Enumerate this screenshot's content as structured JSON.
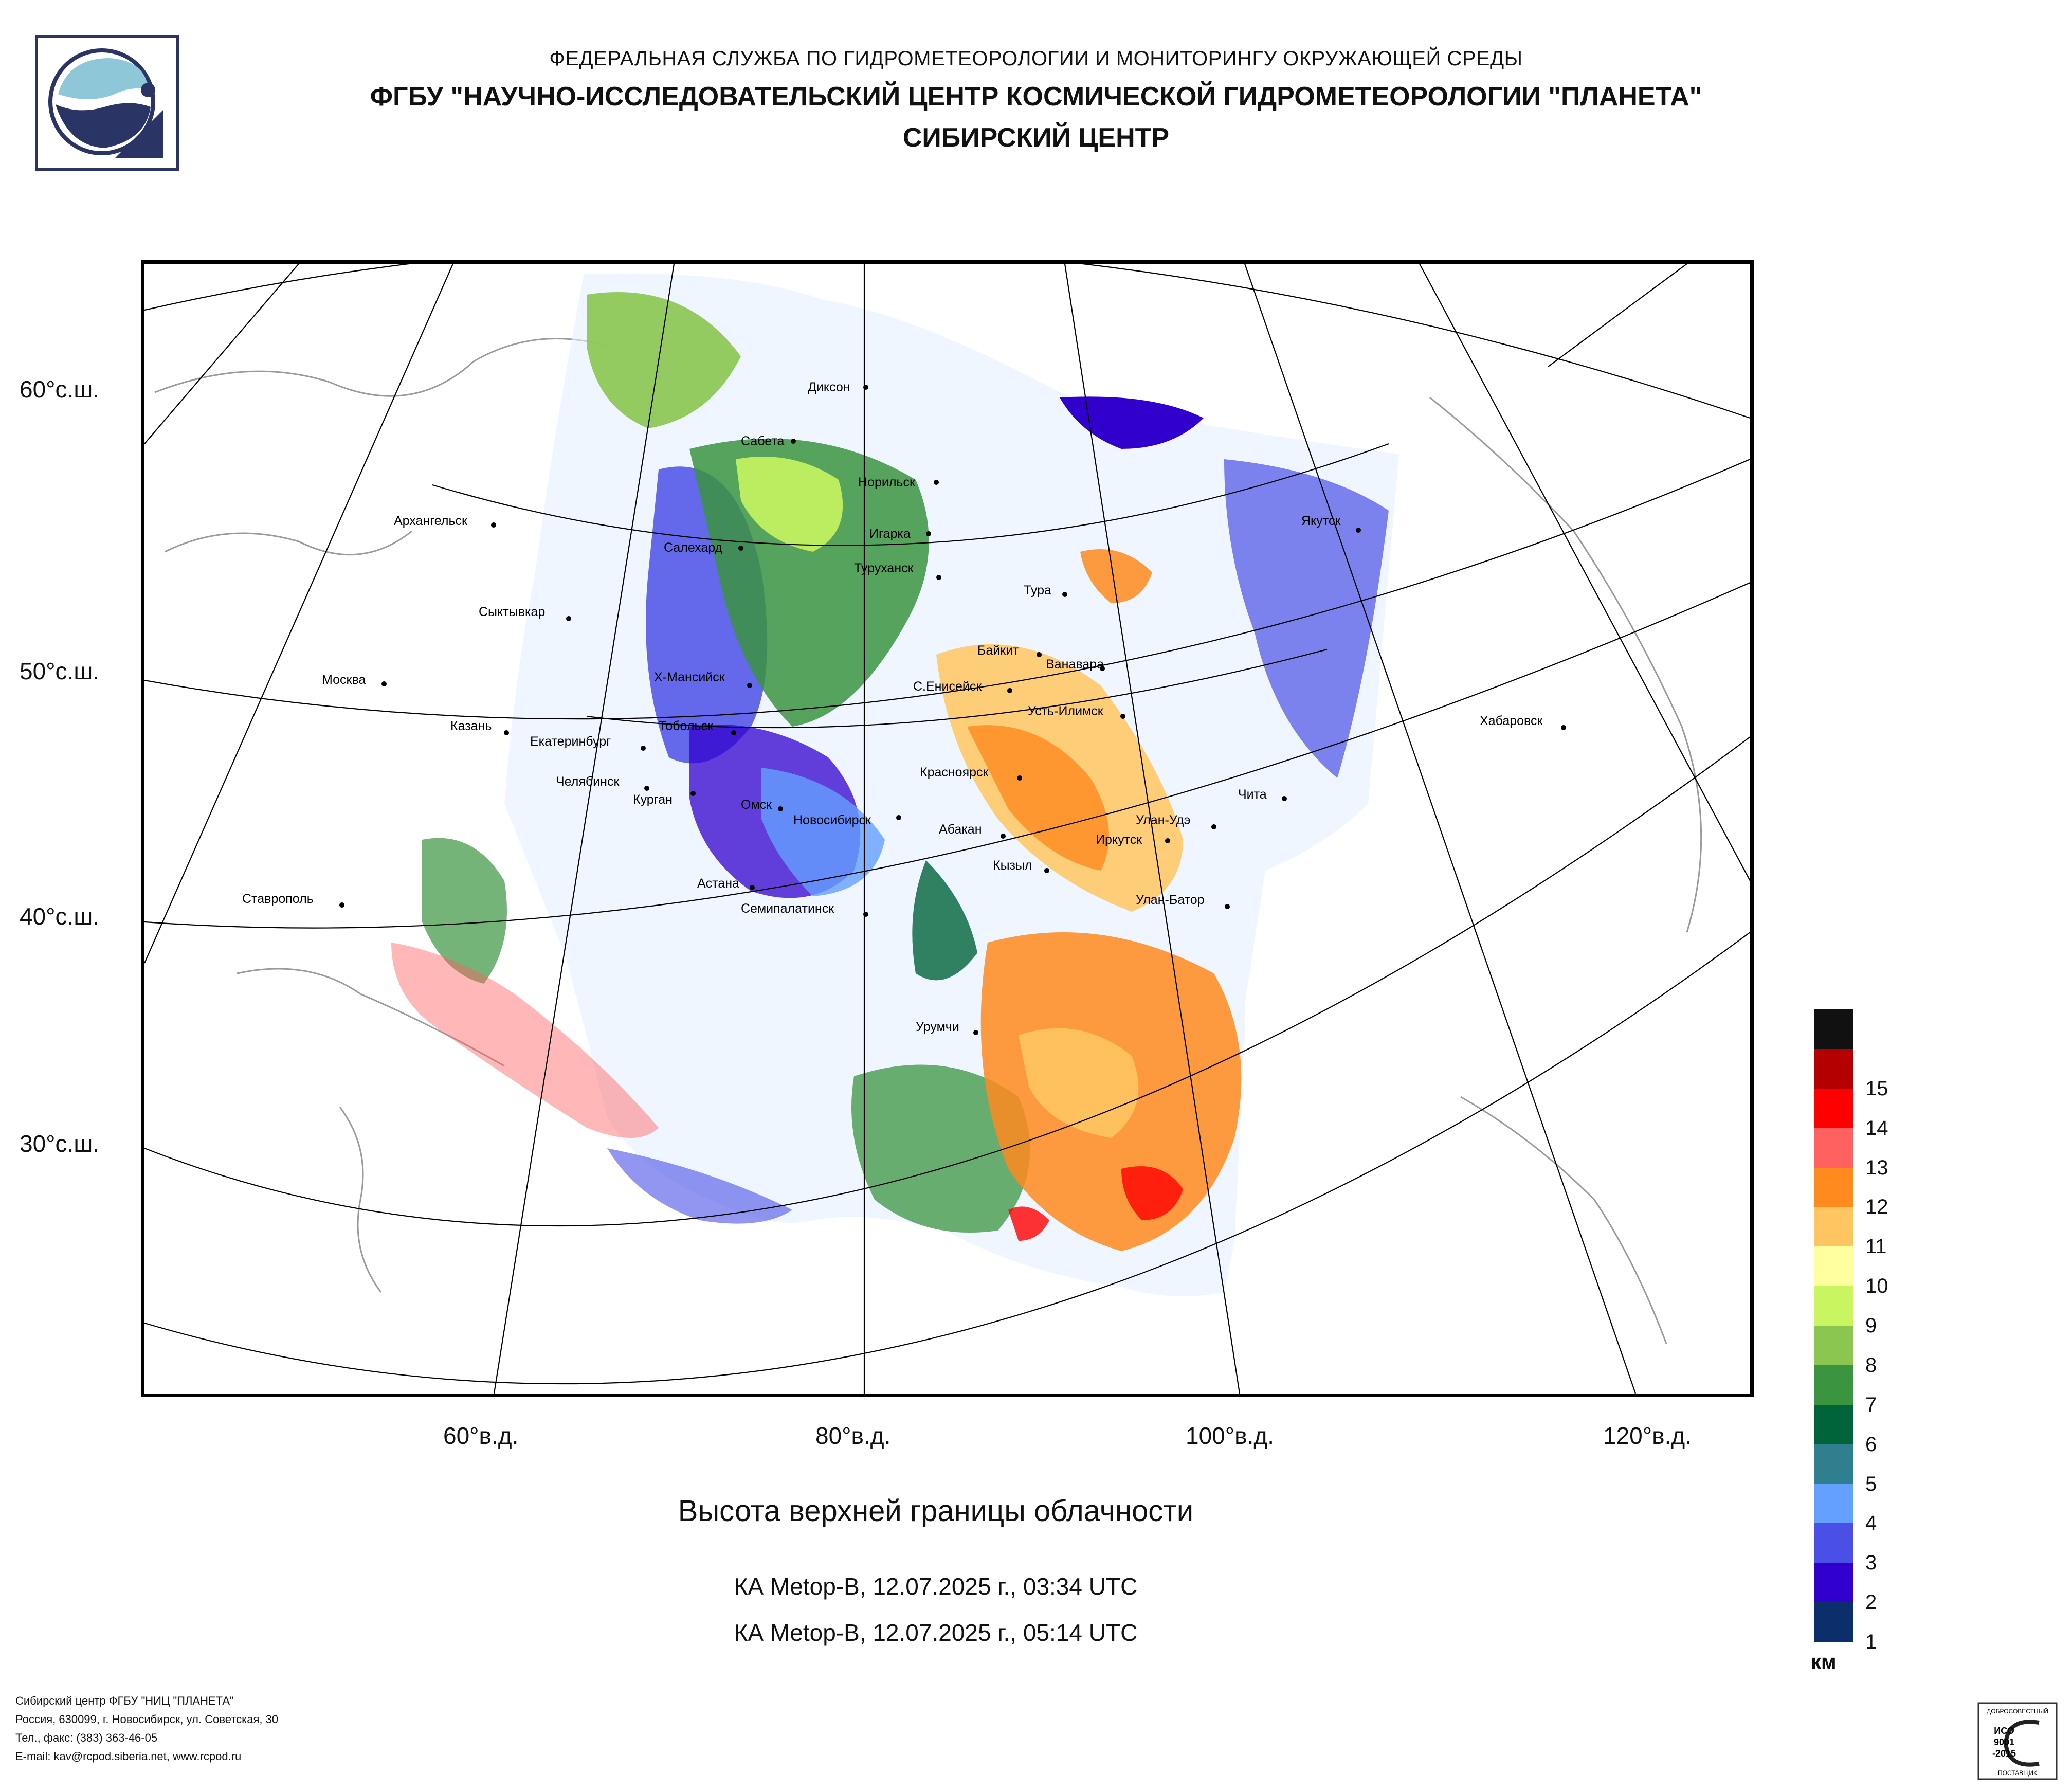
{
  "header": {
    "line1": "ФЕДЕРАЛЬНАЯ СЛУЖБА ПО ГИДРОМЕТЕОРОЛОГИИ И МОНИТОРИНГУ ОКРУЖАЮЩЕЙ СРЕДЫ",
    "line2": "ФГБУ \"НАУЧНО-ИССЛЕДОВАТЕЛЬСКИЙ ЦЕНТР КОСМИЧЕСКОЙ ГИДРОМЕТЕОРОЛОГИИ \"ПЛАНЕТА\"",
    "line3": "СИБИРСКИЙ ЦЕНТР"
  },
  "map": {
    "title": "Высота верхней границы облачности",
    "passes": [
      "КА Metop-B, 12.07.2025 г., 03:34 UTC",
      "КА Metop-B, 12.07.2025 г., 05:14 UTC"
    ],
    "lat_labels": [
      "60°с.ш.",
      "50°с.ш.",
      "40°с.ш.",
      "30°с.ш."
    ],
    "lon_labels": [
      "60°в.д.",
      "80°в.д.",
      "100°в.д.",
      "120°в.д."
    ],
    "cities": [
      {
        "name": "Диксон"
      },
      {
        "name": "Сабета"
      },
      {
        "name": "Норильск"
      },
      {
        "name": "Архангельск"
      },
      {
        "name": "Салехард"
      },
      {
        "name": "Игарка"
      },
      {
        "name": "Якутск"
      },
      {
        "name": "Туруханск"
      },
      {
        "name": "Тура"
      },
      {
        "name": "Сыктывкар"
      },
      {
        "name": "Байкит"
      },
      {
        "name": "Ванавара"
      },
      {
        "name": "Москва"
      },
      {
        "name": "Х-Мансийск"
      },
      {
        "name": "С.Енисейск"
      },
      {
        "name": "Усть-Илимск"
      },
      {
        "name": "Казань"
      },
      {
        "name": "Тобольск"
      },
      {
        "name": "Хабаровск"
      },
      {
        "name": "Екатеринбург"
      },
      {
        "name": "Красноярск"
      },
      {
        "name": "Челябинск"
      },
      {
        "name": "Курган"
      },
      {
        "name": "Чита"
      },
      {
        "name": "Омск"
      },
      {
        "name": "Новосибирск"
      },
      {
        "name": "Улан-Удэ"
      },
      {
        "name": "Абакан"
      },
      {
        "name": "Иркутск"
      },
      {
        "name": "Кызыл"
      },
      {
        "name": "Астана"
      },
      {
        "name": "Ставрополь"
      },
      {
        "name": "Семипалатинск"
      },
      {
        "name": "Улан-Батор"
      },
      {
        "name": "Урумчи"
      }
    ]
  },
  "legend": {
    "unit": "км",
    "levels": [
      {
        "label": "",
        "color": "#111111"
      },
      {
        "label": "15",
        "color": "#b50000"
      },
      {
        "label": "14",
        "color": "#ff0000"
      },
      {
        "label": "13",
        "color": "#ff6060"
      },
      {
        "label": "12",
        "color": "#ff8a1e"
      },
      {
        "label": "11",
        "color": "#ffc560"
      },
      {
        "label": "10",
        "color": "#ffffa0"
      },
      {
        "label": "9",
        "color": "#c8f560"
      },
      {
        "label": "8",
        "color": "#8ac650"
      },
      {
        "label": "7",
        "color": "#3a9440"
      },
      {
        "label": "6",
        "color": "#00643a"
      },
      {
        "label": "5",
        "color": "#2f7f8f"
      },
      {
        "label": "4",
        "color": "#64a0ff"
      },
      {
        "label": "3",
        "color": "#4a50e6"
      },
      {
        "label": "2",
        "color": "#3200cd"
      },
      {
        "label": "1",
        "color": "#0a2f6a"
      }
    ]
  },
  "footer": {
    "lines": [
      "Сибирский центр ФГБУ \"НИЦ \"ПЛАНЕТА\"",
      "Россия, 630099, г. Новосибирск, ул. Советская, 30",
      "Тел., факс: (383) 363-46-05",
      "E-mail: kav@rcpod.siberia.net, www.rcpod.ru"
    ],
    "badge": {
      "top": "ДОБРОСОВЕСТНЫЙ",
      "iso": "ИСО",
      "num": "9001",
      "year": "-2015",
      "bottom": "ПОСТАВЩИК"
    }
  }
}
